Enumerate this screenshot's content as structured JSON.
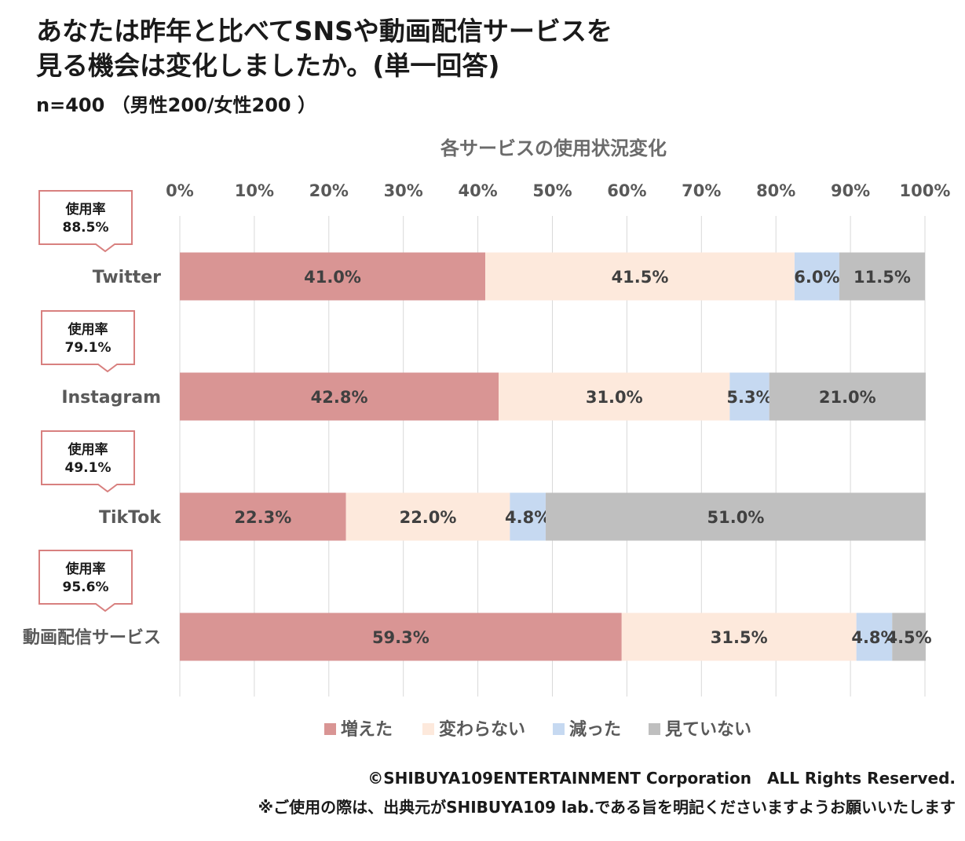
{
  "header": {
    "title_line1": "あなたは昨年と比べてSNSや動画配信サービスを",
    "title_line2": "見る機会は変化しましたか。(単一回答)",
    "sample": "n=400 （男性200/女性200 ）"
  },
  "chart_data": {
    "type": "bar",
    "orientation": "horizontal",
    "stacked": "percent",
    "title": "各サービスの使用状況変化",
    "xlim": [
      0,
      100
    ],
    "x_ticks": [
      "0%",
      "10%",
      "20%",
      "30%",
      "40%",
      "50%",
      "60%",
      "70%",
      "80%",
      "90%",
      "100%"
    ],
    "categories": [
      "Twitter",
      "Instagram",
      "TikTok",
      "動画配信サービス"
    ],
    "series": [
      {
        "name": "増えた",
        "color": "#d99594",
        "values": [
          41.0,
          42.8,
          22.3,
          59.3
        ]
      },
      {
        "name": "変わらない",
        "color": "#fde9dc",
        "values": [
          41.5,
          31.0,
          22.0,
          31.5
        ]
      },
      {
        "name": "減った",
        "color": "#c6d9f1",
        "values": [
          6.0,
          5.3,
          4.8,
          4.8
        ]
      },
      {
        "name": "見ていない",
        "color": "#bfbfbf",
        "values": [
          11.5,
          21.0,
          51.0,
          4.5
        ]
      }
    ],
    "value_labels": [
      [
        "41.0%",
        "41.5%",
        "6.0%",
        "11.5%"
      ],
      [
        "42.8%",
        "31.0%",
        "5.3%",
        "21.0%"
      ],
      [
        "22.3%",
        "22.0%",
        "4.8%",
        "51.0%"
      ],
      [
        "59.3%",
        "31.5%",
        "4.8%",
        "4.5%"
      ]
    ],
    "legend_position": "bottom",
    "grid": true,
    "annotations": [
      {
        "category": "Twitter",
        "label": "使用率",
        "value": "88.5%"
      },
      {
        "category": "Instagram",
        "label": "使用率",
        "value": "79.1%"
      },
      {
        "category": "TikTok",
        "label": "使用率",
        "value": "49.1%"
      },
      {
        "category": "動画配信サービス",
        "label": "使用率",
        "value": "95.6%"
      }
    ],
    "callout_border_color": "#d8807f"
  },
  "footer": {
    "copyright": "©SHIBUYA109ENTERTAINMENT Corporation　ALL Rights Reserved.",
    "note": "※ご使用の際は、出典元がSHIBUYA109 lab.である旨を明記くださいますようお願いいたします"
  }
}
